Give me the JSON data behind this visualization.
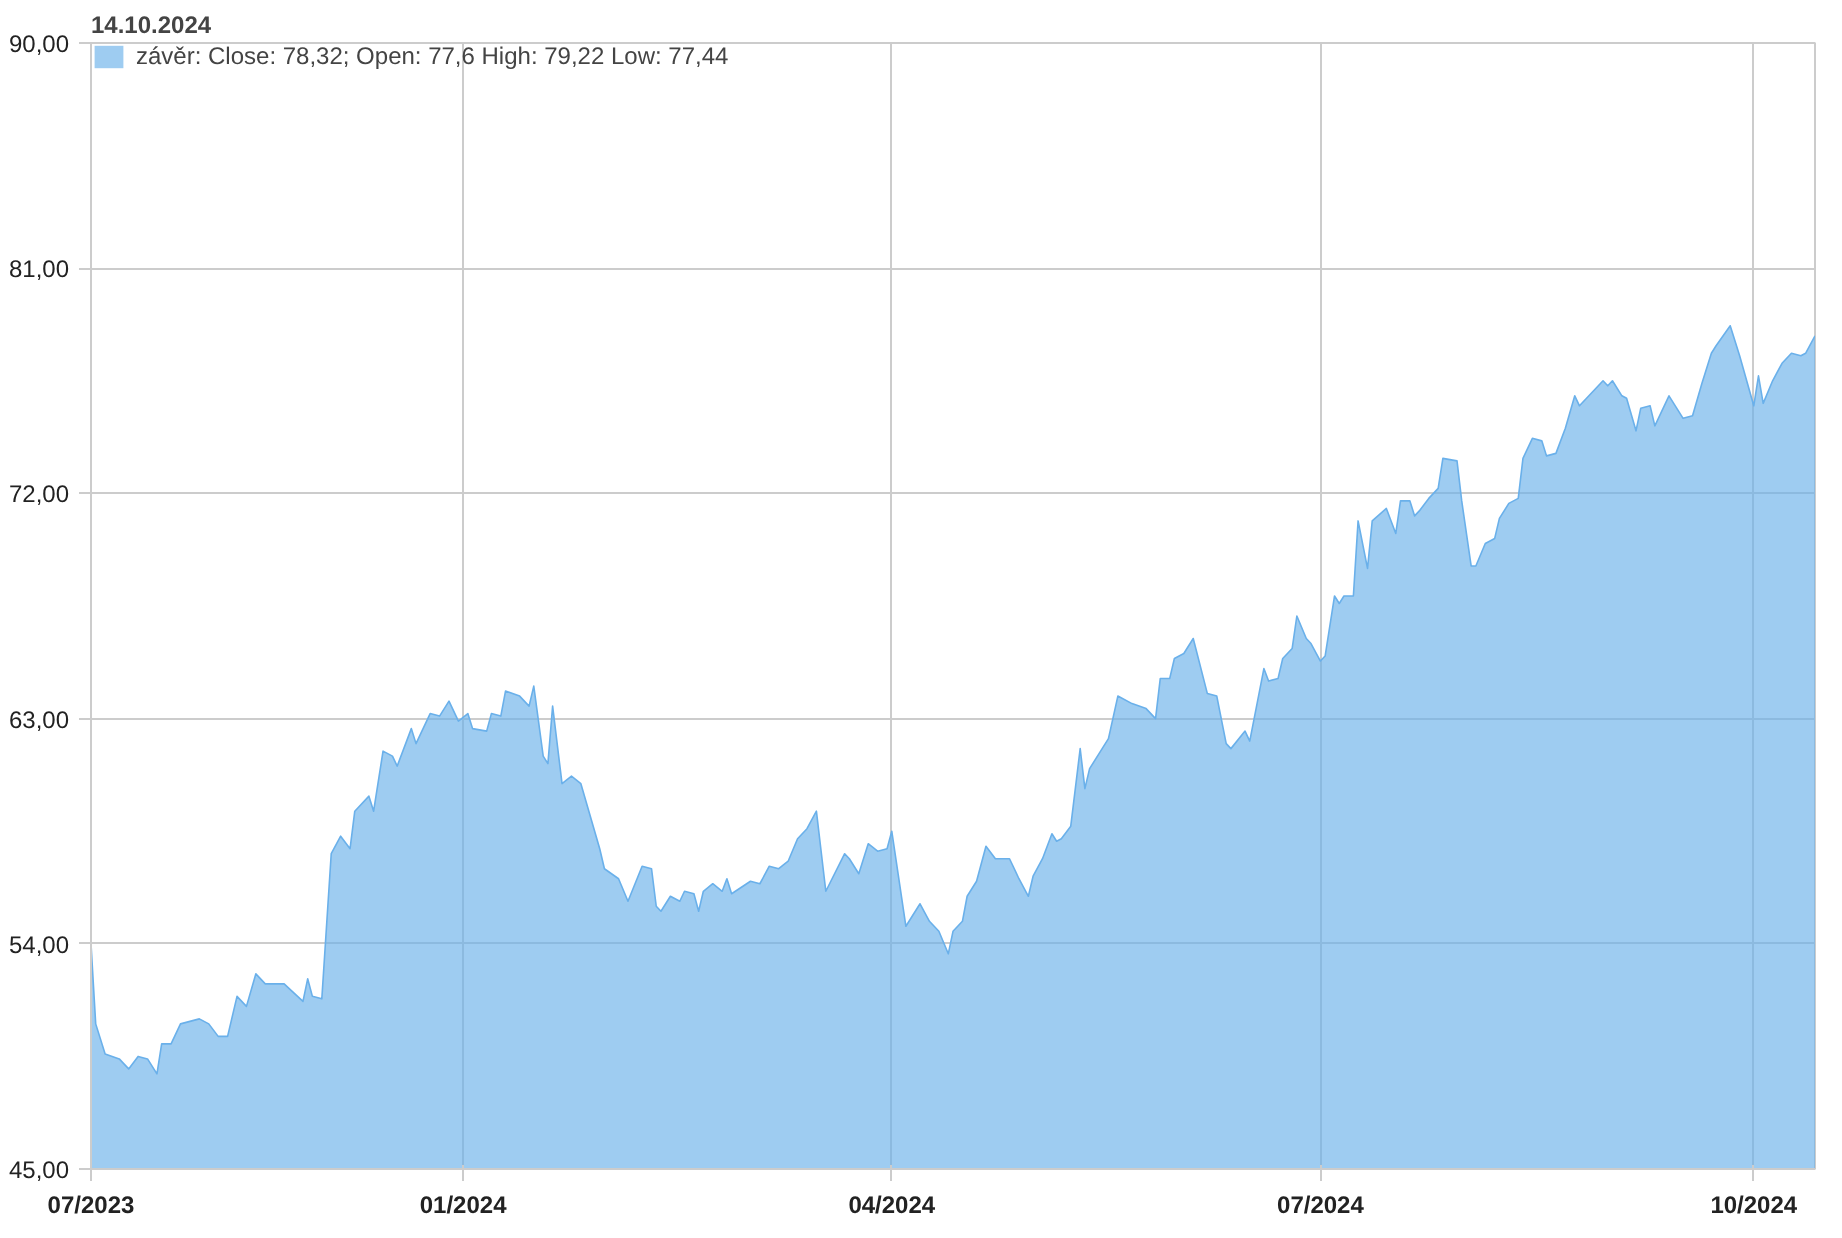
{
  "chart_data": {
    "type": "area",
    "title": "14.10.2024",
    "legend": "top left",
    "grid": true,
    "xlim": [
      "2023-10-14",
      "2024-10-14"
    ],
    "xticks": [
      {
        "value": "2023-10-14",
        "label": "07/2023"
      },
      {
        "value": "2024-01-01",
        "label": "01/2024"
      },
      {
        "value": "2024-04-01",
        "label": "04/2024"
      },
      {
        "value": "2024-07-01",
        "label": "07/2024"
      },
      {
        "value": "2024-10-01",
        "label": "10/2024"
      }
    ],
    "ylim": [
      45,
      90
    ],
    "yticks": [
      {
        "value": 45,
        "label": "45,00"
      },
      {
        "value": 54,
        "label": "54,00"
      },
      {
        "value": 63,
        "label": "63,00"
      },
      {
        "value": 72,
        "label": "72,00"
      },
      {
        "value": 81,
        "label": "81,00"
      },
      {
        "value": 90,
        "label": "90,00"
      }
    ],
    "x": [
      "2023-10-14",
      "2023-10-15",
      "2023-10-17",
      "2023-10-20",
      "2023-10-22",
      "2023-10-24",
      "2023-10-26",
      "2023-10-28",
      "2023-10-29",
      "2023-10-31",
      "2023-11-02",
      "2023-11-06",
      "2023-11-08",
      "2023-11-10",
      "2023-11-12",
      "2023-11-14",
      "2023-11-16",
      "2023-11-18",
      "2023-11-20",
      "2023-11-24",
      "2023-11-28",
      "2023-11-29",
      "2023-11-30",
      "2023-12-02",
      "2023-12-04",
      "2023-12-06",
      "2023-12-08",
      "2023-12-09",
      "2023-12-12",
      "2023-12-13",
      "2023-12-15",
      "2023-12-17",
      "2023-12-18",
      "2023-12-21",
      "2023-12-22",
      "2023-12-25",
      "2023-12-27",
      "2023-12-29",
      "2023-12-31",
      "2024-01-02",
      "2024-01-03",
      "2024-01-06",
      "2024-01-07",
      "2024-01-09",
      "2024-01-10",
      "2024-01-13",
      "2024-01-15",
      "2024-01-16",
      "2024-01-18",
      "2024-01-19",
      "2024-01-20",
      "2024-01-22",
      "2024-01-24",
      "2024-01-26",
      "2024-01-30",
      "2024-01-31",
      "2024-02-03",
      "2024-02-05",
      "2024-02-08",
      "2024-02-10",
      "2024-02-11",
      "2024-02-12",
      "2024-02-14",
      "2024-02-16",
      "2024-02-17",
      "2024-02-19",
      "2024-02-20",
      "2024-02-21",
      "2024-02-23",
      "2024-02-25",
      "2024-02-26",
      "2024-02-27",
      "2024-03-02",
      "2024-03-04",
      "2024-03-06",
      "2024-03-08",
      "2024-03-10",
      "2024-03-12",
      "2024-03-14",
      "2024-03-16",
      "2024-03-18",
      "2024-03-22",
      "2024-03-23",
      "2024-03-25",
      "2024-03-27",
      "2024-03-29",
      "2024-03-31",
      "2024-04-01",
      "2024-04-04",
      "2024-04-07",
      "2024-04-09",
      "2024-04-11",
      "2024-04-13",
      "2024-04-14",
      "2024-04-16",
      "2024-04-17",
      "2024-04-19",
      "2024-04-21",
      "2024-04-23",
      "2024-04-26",
      "2024-04-28",
      "2024-04-30",
      "2024-05-01",
      "2024-05-03",
      "2024-05-05",
      "2024-05-06",
      "2024-05-07",
      "2024-05-09",
      "2024-05-11",
      "2024-05-12",
      "2024-05-13",
      "2024-05-15",
      "2024-05-17",
      "2024-05-19",
      "2024-05-22",
      "2024-05-25",
      "2024-05-27",
      "2024-05-28",
      "2024-05-30",
      "2024-05-31",
      "2024-06-02",
      "2024-06-04",
      "2024-06-07",
      "2024-06-09",
      "2024-06-11",
      "2024-06-12",
      "2024-06-15",
      "2024-06-16",
      "2024-06-19",
      "2024-06-20",
      "2024-06-22",
      "2024-06-23",
      "2024-06-25",
      "2024-06-26",
      "2024-06-28",
      "2024-06-29",
      "2024-07-01",
      "2024-07-02",
      "2024-07-04",
      "2024-07-05",
      "2024-07-06",
      "2024-07-08",
      "2024-07-09",
      "2024-07-11",
      "2024-07-12",
      "2024-07-15",
      "2024-07-17",
      "2024-07-18",
      "2024-07-20",
      "2024-07-21",
      "2024-07-22",
      "2024-07-24",
      "2024-07-26",
      "2024-07-27",
      "2024-07-30",
      "2024-07-31",
      "2024-08-02",
      "2024-08-03",
      "2024-08-05",
      "2024-08-07",
      "2024-08-08",
      "2024-08-10",
      "2024-08-12",
      "2024-08-13",
      "2024-08-15",
      "2024-08-17",
      "2024-08-18",
      "2024-08-20",
      "2024-08-22",
      "2024-08-24",
      "2024-08-25",
      "2024-08-28",
      "2024-08-30",
      "2024-08-31",
      "2024-09-01",
      "2024-09-03",
      "2024-09-04",
      "2024-09-06",
      "2024-09-07",
      "2024-09-09",
      "2024-09-10",
      "2024-09-13",
      "2024-09-15",
      "2024-09-16",
      "2024-09-18",
      "2024-09-20",
      "2024-09-22",
      "2024-09-23",
      "2024-09-26",
      "2024-09-28",
      "2024-10-01",
      "2024-10-02",
      "2024-10-03",
      "2024-10-05",
      "2024-10-07",
      "2024-10-09",
      "2024-10-11",
      "2024-10-12",
      "2024-10-14"
    ],
    "series": [
      {
        "name": "závěr: Close: 78,32; Open: 77,6 High: 79,22 Low: 77,44",
        "color": "#6ab0ea",
        "values": [
          54.0,
          50.8,
          49.6,
          49.4,
          49.0,
          49.5,
          49.4,
          48.8,
          50.0,
          50.0,
          50.8,
          51.0,
          50.8,
          50.3,
          50.3,
          51.9,
          51.5,
          52.8,
          52.4,
          52.4,
          51.7,
          52.6,
          51.9,
          51.8,
          57.6,
          58.3,
          57.8,
          59.3,
          59.9,
          59.3,
          61.7,
          61.5,
          61.1,
          62.6,
          62.0,
          63.2,
          63.1,
          63.7,
          62.9,
          63.2,
          62.6,
          62.5,
          63.2,
          63.1,
          64.1,
          63.9,
          63.5,
          64.3,
          61.5,
          61.2,
          63.5,
          60.4,
          60.7,
          60.4,
          57.8,
          57.0,
          56.6,
          55.7,
          57.1,
          57.0,
          55.5,
          55.3,
          55.9,
          55.7,
          56.1,
          56.0,
          55.3,
          56.1,
          56.4,
          56.1,
          56.6,
          56.0,
          56.5,
          56.4,
          57.1,
          57.0,
          57.3,
          58.2,
          58.6,
          59.3,
          56.1,
          57.6,
          57.4,
          56.8,
          58.0,
          57.7,
          57.8,
          58.5,
          54.7,
          55.6,
          54.9,
          54.5,
          53.6,
          54.5,
          54.9,
          55.9,
          56.5,
          57.9,
          57.4,
          57.4,
          56.6,
          55.9,
          56.7,
          57.4,
          58.4,
          58.1,
          58.2,
          58.7,
          61.8,
          60.2,
          61.0,
          61.6,
          62.2,
          63.9,
          63.6,
          63.4,
          63.0,
          64.6,
          64.6,
          65.4,
          65.6,
          66.2,
          64.0,
          63.9,
          62.0,
          61.8,
          62.5,
          62.1,
          65.0,
          64.5,
          64.6,
          65.4,
          65.8,
          67.1,
          66.2,
          66.0,
          65.3,
          65.5,
          67.9,
          67.6,
          67.9,
          67.9,
          70.9,
          69.0,
          70.9,
          71.4,
          70.4,
          71.7,
          71.7,
          71.1,
          71.3,
          71.8,
          72.2,
          73.4,
          73.3,
          71.7,
          69.1,
          69.1,
          70.0,
          70.2,
          71.0,
          71.6,
          71.8,
          73.4,
          74.2,
          74.1,
          73.5,
          73.6,
          74.6,
          75.9,
          75.5,
          76.1,
          76.5,
          76.3,
          76.5,
          75.9,
          75.8,
          74.5,
          75.4,
          75.5,
          74.7,
          75.9,
          75.3,
          75.0,
          75.1,
          76.4,
          77.6,
          77.9,
          78.7,
          77.5,
          75.5,
          76.7,
          75.6,
          76.5,
          77.2,
          77.6,
          77.5,
          77.6,
          78.3
        ]
      }
    ]
  }
}
